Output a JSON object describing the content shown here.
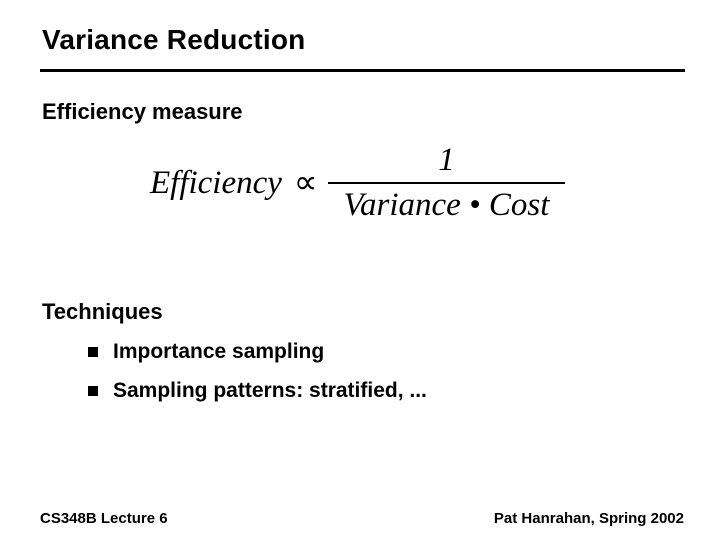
{
  "slide": {
    "title": "Variance Reduction",
    "efficiency_heading": "Efficiency measure",
    "formula": {
      "lhs": "Efficiency",
      "relation": "∝",
      "numerator": "1",
      "denominator": "Variance • Cost"
    },
    "techniques_heading": "Techniques",
    "bullets": [
      "Importance sampling",
      "Sampling patterns: stratified, ..."
    ],
    "footer": {
      "left": "CS348B Lecture 6",
      "right": "Pat Hanrahan, Spring 2002"
    },
    "colors": {
      "background": "#ffffff",
      "text": "#000000"
    }
  }
}
